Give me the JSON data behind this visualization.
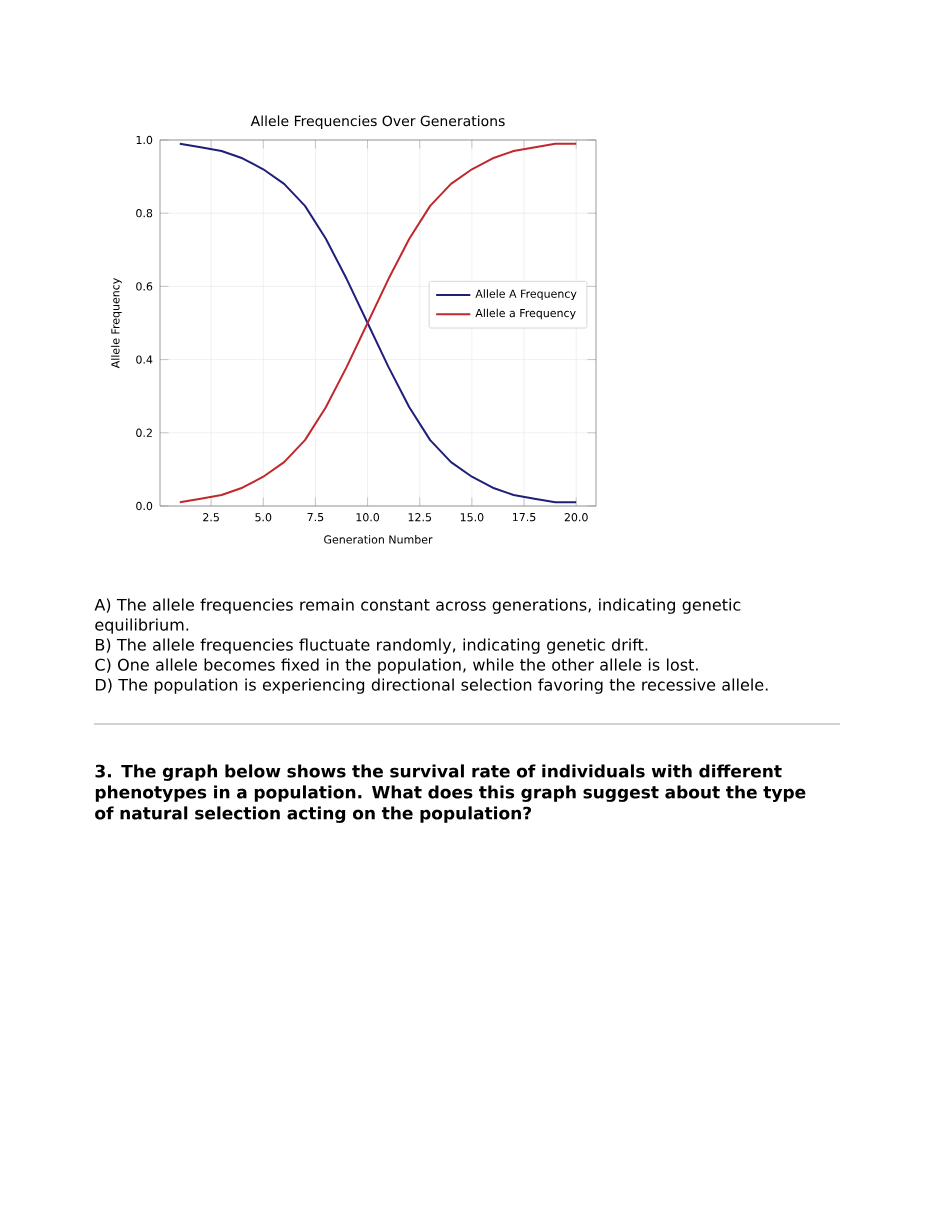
{
  "chart_data": {
    "type": "line",
    "title": "Allele Frequencies Over Generations",
    "xlabel": "Generation Number",
    "ylabel": "Allele Frequency",
    "x": [
      1,
      2,
      3,
      4,
      5,
      6,
      7,
      8,
      9,
      10,
      11,
      12,
      13,
      14,
      15,
      16,
      17,
      18,
      19,
      20
    ],
    "series": [
      {
        "name": "Allele A Frequency",
        "color": "#1f1f7a",
        "values": [
          0.99,
          0.98,
          0.97,
          0.95,
          0.92,
          0.88,
          0.82,
          0.73,
          0.62,
          0.5,
          0.38,
          0.27,
          0.18,
          0.12,
          0.08,
          0.05,
          0.03,
          0.02,
          0.01,
          0.01
        ]
      },
      {
        "name": "Allele a Frequency",
        "color": "#c0282d",
        "values": [
          0.01,
          0.02,
          0.03,
          0.05,
          0.08,
          0.12,
          0.18,
          0.27,
          0.38,
          0.5,
          0.62,
          0.73,
          0.82,
          0.88,
          0.92,
          0.95,
          0.97,
          0.98,
          0.99,
          0.99
        ]
      }
    ],
    "xlim": [
      0.05,
      20.95
    ],
    "ylim": [
      0,
      1
    ],
    "xticks": [
      {
        "value": 2.5,
        "label": "2.5"
      },
      {
        "value": 5,
        "label": "5.0"
      },
      {
        "value": 7.5,
        "label": "7.5"
      },
      {
        "value": 10,
        "label": "10.0"
      },
      {
        "value": 12.5,
        "label": "12.5"
      },
      {
        "value": 15,
        "label": "15.0"
      },
      {
        "value": 17.5,
        "label": "17.5"
      },
      {
        "value": 20,
        "label": "20.0"
      }
    ],
    "yticks": [
      {
        "value": 0,
        "label": "0.0"
      },
      {
        "value": 0.2,
        "label": "0.2"
      },
      {
        "value": 0.4,
        "label": "0.4"
      },
      {
        "value": 0.6,
        "label": "0.6"
      },
      {
        "value": 0.8,
        "label": "0.8"
      },
      {
        "value": 1,
        "label": "1.0"
      }
    ],
    "grid": true,
    "legend": "right",
    "marker": "none",
    "line_style": "solid",
    "annotations": [
      "A) The allele frequencies remain constant across generations, indicating genetic equilibrium.",
      "B) The allele frequencies fluctuate randomly, indicating genetic drift.",
      "C) One allele becomes fixed in the population, while the other allele is lost.",
      "D) The population is experiencing directional selection favoring the recessive allele.",
      "**3. The graph below shows the survival rate of individuals with different phenotypes in a population. What does this graph suggest about the type of natural selection acting on the population?**"
    ]
  }
}
